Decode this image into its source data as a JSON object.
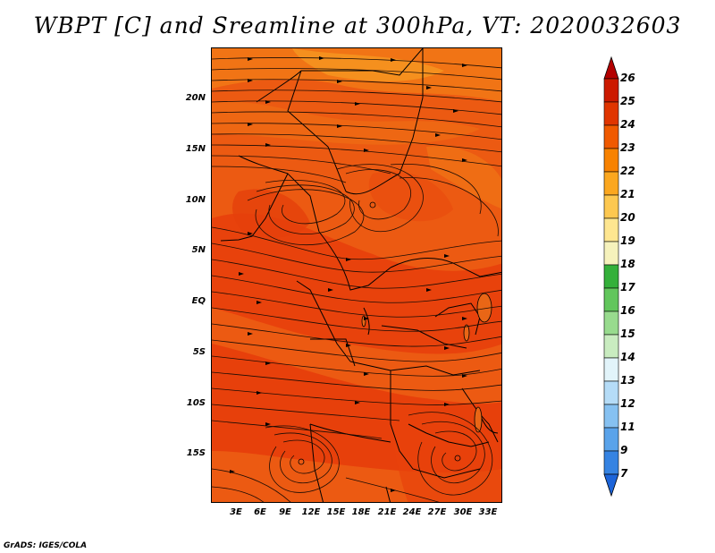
{
  "title": "WBPT [C] and Sreamline at 300hPa, VT: 2020032603",
  "credit": "GrADS: IGES/COLA",
  "map": {
    "lat_labels": [
      "20N",
      "15N",
      "10N",
      "5N",
      "EQ",
      "5S",
      "10S",
      "15S"
    ],
    "lon_labels": [
      "3E",
      "6E",
      "9E",
      "12E",
      "15E",
      "18E",
      "21E",
      "24E",
      "27E",
      "30E",
      "33E"
    ]
  },
  "colorbar": {
    "labels": [
      "26",
      "25",
      "24",
      "23",
      "22",
      "21",
      "20",
      "19",
      "18",
      "17",
      "16",
      "15",
      "14",
      "13",
      "12",
      "11",
      "9",
      "7"
    ],
    "colors": [
      "#b30000",
      "#cc1a00",
      "#e03500",
      "#f05a00",
      "#f88200",
      "#fba71f",
      "#fdc850",
      "#fee690",
      "#f6f2bc",
      "#34b03a",
      "#62c65c",
      "#98db8e",
      "#c9ecc0",
      "#e2f4fa",
      "#b5dcf7",
      "#86c1f1",
      "#5aa3ea",
      "#3583e2",
      "#1c64d9"
    ]
  },
  "chart_data": {
    "type": "heatmap",
    "title": "WBPT [C] and Sreamline at 300hPa, VT: 2020032603",
    "variable": "Wet-bulb potential temperature at 300hPa (C), with streamlines",
    "valid_time": "2020032603",
    "x_ticks": [
      "3E",
      "6E",
      "9E",
      "12E",
      "15E",
      "18E",
      "21E",
      "24E",
      "27E",
      "30E",
      "33E"
    ],
    "y_ticks": [
      "20N",
      "15N",
      "10N",
      "5N",
      "EQ",
      "5S",
      "10S",
      "15S"
    ],
    "colorbar_levels": [
      7,
      9,
      11,
      12,
      13,
      14,
      15,
      16,
      17,
      18,
      19,
      20,
      21,
      22,
      23,
      24,
      25,
      26
    ],
    "dominant_range": [
      22,
      24
    ]
  }
}
